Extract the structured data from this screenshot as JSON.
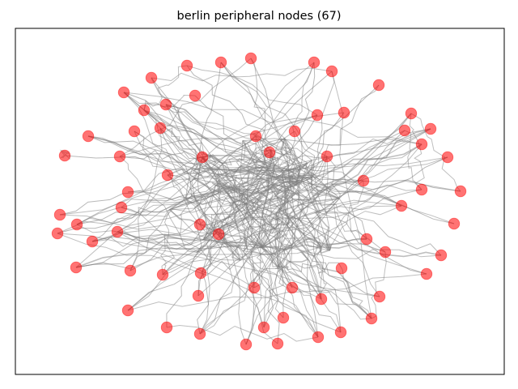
{
  "figure": {
    "title": "berlin peripheral nodes (67)",
    "edge_color": "#808080",
    "node_color": "#ff0000",
    "node_opacity": 0.55,
    "axes_frame": true
  },
  "chart_data": {
    "type": "scatter",
    "title": "berlin peripheral nodes (67)",
    "xlabel": "",
    "ylabel": "",
    "grid": false,
    "ticks": false,
    "network_edges": "dense gray road network (not individually labeled)",
    "peripheral_nodes": [
      [
        231,
        81
      ],
      [
        273,
        77
      ],
      [
        310,
        72
      ],
      [
        388,
        77
      ],
      [
        410,
        88
      ],
      [
        468,
        105
      ],
      [
        187,
        96
      ],
      [
        153,
        114
      ],
      [
        241,
        118
      ],
      [
        178,
        136
      ],
      [
        205,
        129
      ],
      [
        425,
        139
      ],
      [
        392,
        142
      ],
      [
        508,
        140
      ],
      [
        109,
        168
      ],
      [
        166,
        162
      ],
      [
        198,
        158
      ],
      [
        316,
        168
      ],
      [
        364,
        162
      ],
      [
        500,
        161
      ],
      [
        532,
        159
      ],
      [
        521,
        178
      ],
      [
        80,
        192
      ],
      [
        148,
        193
      ],
      [
        250,
        194
      ],
      [
        333,
        188
      ],
      [
        404,
        193
      ],
      [
        553,
        194
      ],
      [
        207,
        216
      ],
      [
        449,
        223
      ],
      [
        158,
        237
      ],
      [
        521,
        234
      ],
      [
        569,
        236
      ],
      [
        150,
        256
      ],
      [
        496,
        254
      ],
      [
        74,
        265
      ],
      [
        95,
        277
      ],
      [
        247,
        277
      ],
      [
        561,
        276
      ],
      [
        71,
        288
      ],
      [
        145,
        286
      ],
      [
        270,
        289
      ],
      [
        453,
        295
      ],
      [
        114,
        298
      ],
      [
        476,
        311
      ],
      [
        545,
        315
      ],
      [
        94,
        330
      ],
      [
        161,
        334
      ],
      [
        201,
        339
      ],
      [
        248,
        337
      ],
      [
        422,
        331
      ],
      [
        527,
        338
      ],
      [
        314,
        355
      ],
      [
        361,
        355
      ],
      [
        245,
        365
      ],
      [
        397,
        369
      ],
      [
        469,
        366
      ],
      [
        158,
        383
      ],
      [
        350,
        392
      ],
      [
        459,
        393
      ],
      [
        206,
        404
      ],
      [
        326,
        404
      ],
      [
        247,
        412
      ],
      [
        393,
        416
      ],
      [
        421,
        410
      ],
      [
        304,
        425
      ],
      [
        343,
        424
      ]
    ]
  }
}
